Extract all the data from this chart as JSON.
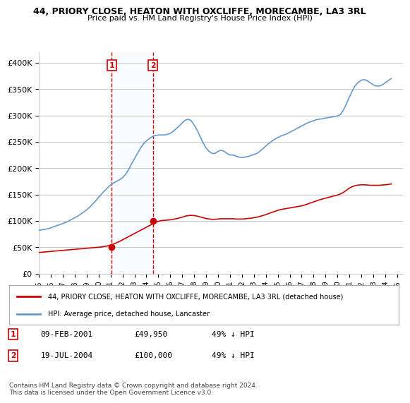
{
  "title": "44, PRIORY CLOSE, HEATON WITH OXCLIFFE, MORECAMBE, LA3 3RL",
  "subtitle": "Price paid vs. HM Land Registry's House Price Index (HPI)",
  "ylabel_ticks": [
    "£0",
    "£50K",
    "£100K",
    "£150K",
    "£200K",
    "£250K",
    "£300K",
    "£350K",
    "£400K"
  ],
  "ytick_vals": [
    0,
    50000,
    100000,
    150000,
    200000,
    250000,
    300000,
    350000,
    400000
  ],
  "ylim": [
    0,
    420000
  ],
  "xlim_start": 1995.0,
  "xlim_end": 2025.5,
  "transaction1": {
    "date_x": 2001.1,
    "price": 49950,
    "label": "1"
  },
  "transaction2": {
    "date_x": 2004.54,
    "price": 100000,
    "label": "2"
  },
  "legend_red": "44, PRIORY CLOSE, HEATON WITH OXCLIFFE, MORECAMBE, LA3 3RL (detached house)",
  "legend_blue": "HPI: Average price, detached house, Lancaster",
  "annotation1": "09-FEB-2001        £49,950        49% ↓ HPI",
  "annotation2": "19-JUL-2004        £100,000       49% ↓ HPI",
  "footer": "Contains HM Land Registry data © Crown copyright and database right 2024.\nThis data is licensed under the Open Government Licence v3.0.",
  "red_color": "#cc0000",
  "blue_color": "#6699cc",
  "vline_color": "#cc0000",
  "bg_color": "#ffffff",
  "grid_color": "#cccccc",
  "xtick_years": [
    1995,
    1996,
    1997,
    1998,
    1999,
    2000,
    2001,
    2002,
    2003,
    2004,
    2005,
    2006,
    2007,
    2008,
    2009,
    2010,
    2011,
    2012,
    2013,
    2014,
    2015,
    2016,
    2017,
    2018,
    2019,
    2020,
    2021,
    2022,
    2023,
    2024,
    2025
  ],
  "hpi_x": [
    1995.0,
    1995.25,
    1995.5,
    1995.75,
    1996.0,
    1996.25,
    1996.5,
    1996.75,
    1997.0,
    1997.25,
    1997.5,
    1997.75,
    1998.0,
    1998.25,
    1998.5,
    1998.75,
    1999.0,
    1999.25,
    1999.5,
    1999.75,
    2000.0,
    2000.25,
    2000.5,
    2000.75,
    2001.0,
    2001.25,
    2001.5,
    2001.75,
    2002.0,
    2002.25,
    2002.5,
    2002.75,
    2003.0,
    2003.25,
    2003.5,
    2003.75,
    2004.0,
    2004.25,
    2004.5,
    2004.75,
    2005.0,
    2005.25,
    2005.5,
    2005.75,
    2006.0,
    2006.25,
    2006.5,
    2006.75,
    2007.0,
    2007.25,
    2007.5,
    2007.75,
    2008.0,
    2008.25,
    2008.5,
    2008.75,
    2009.0,
    2009.25,
    2009.5,
    2009.75,
    2010.0,
    2010.25,
    2010.5,
    2010.75,
    2011.0,
    2011.25,
    2011.5,
    2011.75,
    2012.0,
    2012.25,
    2012.5,
    2012.75,
    2013.0,
    2013.25,
    2013.5,
    2013.75,
    2014.0,
    2014.25,
    2014.5,
    2014.75,
    2015.0,
    2015.25,
    2015.5,
    2015.75,
    2016.0,
    2016.25,
    2016.5,
    2016.75,
    2017.0,
    2017.25,
    2017.5,
    2017.75,
    2018.0,
    2018.25,
    2018.5,
    2018.75,
    2019.0,
    2019.25,
    2019.5,
    2019.75,
    2020.0,
    2020.25,
    2020.5,
    2020.75,
    2021.0,
    2021.25,
    2021.5,
    2021.75,
    2022.0,
    2022.25,
    2022.5,
    2022.75,
    2023.0,
    2023.25,
    2023.5,
    2023.75,
    2024.0,
    2024.25,
    2024.5
  ],
  "hpi_y": [
    82000,
    83000,
    84000,
    85000,
    87000,
    89000,
    91000,
    93000,
    95000,
    97000,
    100000,
    103000,
    106000,
    109000,
    113000,
    117000,
    121000,
    126000,
    132000,
    138000,
    145000,
    151000,
    157000,
    163000,
    168000,
    172000,
    175000,
    178000,
    182000,
    188000,
    197000,
    208000,
    218000,
    228000,
    238000,
    246000,
    252000,
    256000,
    260000,
    262000,
    263000,
    263000,
    263000,
    264000,
    266000,
    270000,
    275000,
    280000,
    286000,
    291000,
    293000,
    290000,
    282000,
    272000,
    260000,
    248000,
    238000,
    232000,
    228000,
    228000,
    232000,
    234000,
    232000,
    228000,
    225000,
    225000,
    223000,
    221000,
    220000,
    221000,
    222000,
    224000,
    226000,
    228000,
    232000,
    237000,
    242000,
    247000,
    251000,
    255000,
    258000,
    261000,
    263000,
    265000,
    268000,
    271000,
    274000,
    277000,
    280000,
    283000,
    286000,
    288000,
    290000,
    292000,
    293000,
    294000,
    295000,
    296000,
    297000,
    298000,
    299000,
    302000,
    310000,
    322000,
    335000,
    347000,
    357000,
    363000,
    367000,
    368000,
    366000,
    362000,
    358000,
    356000,
    356000,
    358000,
    362000,
    366000,
    370000
  ],
  "price_x": [
    1995.0,
    1995.25,
    1995.5,
    1995.75,
    1996.0,
    1996.25,
    1996.5,
    1996.75,
    1997.0,
    1997.25,
    1997.5,
    1997.75,
    1998.0,
    1998.25,
    1998.5,
    1998.75,
    1999.0,
    1999.25,
    1999.5,
    1999.75,
    2000.0,
    2000.25,
    2000.5,
    2000.75,
    2001.0,
    2001.25,
    2001.5,
    2001.75,
    2002.0,
    2002.25,
    2002.5,
    2002.75,
    2003.0,
    2003.25,
    2003.5,
    2003.75,
    2004.0,
    2004.25,
    2004.5,
    2004.75,
    2005.0,
    2005.25,
    2005.5,
    2005.75,
    2006.0,
    2006.25,
    2006.5,
    2006.75,
    2007.0,
    2007.25,
    2007.5,
    2007.75,
    2008.0,
    2008.25,
    2008.5,
    2008.75,
    2009.0,
    2009.25,
    2009.5,
    2009.75,
    2010.0,
    2010.25,
    2010.5,
    2010.75,
    2011.0,
    2011.25,
    2011.5,
    2011.75,
    2012.0,
    2012.25,
    2012.5,
    2012.75,
    2013.0,
    2013.25,
    2013.5,
    2013.75,
    2014.0,
    2014.25,
    2014.5,
    2014.75,
    2015.0,
    2015.25,
    2015.5,
    2015.75,
    2016.0,
    2016.25,
    2016.5,
    2016.75,
    2017.0,
    2017.25,
    2017.5,
    2017.75,
    2018.0,
    2018.25,
    2018.5,
    2018.75,
    2019.0,
    2019.25,
    2019.5,
    2019.75,
    2020.0,
    2020.25,
    2020.5,
    2020.75,
    2021.0,
    2021.25,
    2021.5,
    2021.75,
    2022.0,
    2022.25,
    2022.5,
    2022.75,
    2023.0,
    2023.25,
    2023.5,
    2023.75,
    2024.0,
    2024.25,
    2024.5
  ],
  "price_y": [
    40000,
    40500,
    41000,
    41500,
    42000,
    42500,
    43000,
    43500,
    44000,
    44500,
    45000,
    45500,
    46000,
    46500,
    47000,
    47500,
    48000,
    48500,
    49000,
    49500,
    49950,
    50500,
    51500,
    52500,
    54000,
    56000,
    58500,
    61000,
    64000,
    67000,
    70000,
    73000,
    76000,
    79000,
    82000,
    85000,
    88000,
    91000,
    94000,
    97000,
    99000,
    100500,
    101000,
    101500,
    102000,
    103000,
    104000,
    105500,
    107000,
    109000,
    110000,
    110500,
    110000,
    109000,
    107500,
    106000,
    104500,
    103500,
    103000,
    103000,
    103500,
    104000,
    104000,
    104000,
    104000,
    104000,
    103500,
    103500,
    103500,
    104000,
    104500,
    105000,
    106000,
    107000,
    108500,
    110000,
    112000,
    114000,
    116000,
    118000,
    120000,
    121500,
    122500,
    123500,
    124500,
    125500,
    126500,
    127500,
    128500,
    130000,
    132000,
    134000,
    136000,
    138000,
    140000,
    141500,
    143000,
    144500,
    146000,
    147500,
    149000,
    151000,
    154000,
    158000,
    162000,
    165000,
    167000,
    168000,
    168500,
    168500,
    168000,
    167500,
    167500,
    167500,
    167500,
    168000,
    168500,
    169000,
    170000
  ]
}
